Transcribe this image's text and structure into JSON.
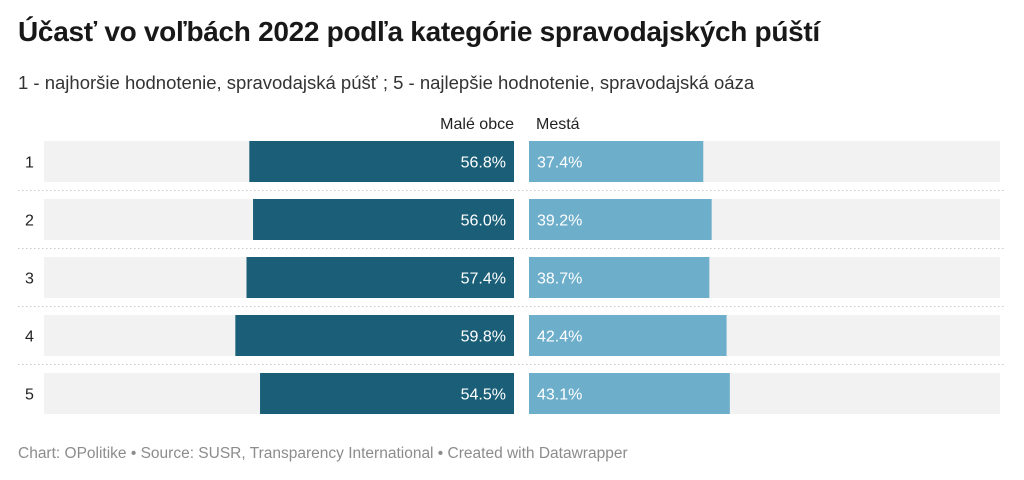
{
  "header": {
    "title": "Účasť vo voľbách 2022 podľa kategórie spravodajských púští",
    "subtitle": "1 - najhoršie hodnotenie, spravodajská púšť ; 5 - najlepšie hodnotenie, spravodajská oáza"
  },
  "footer": {
    "credit": "Chart: OPolitike • Source: SUSR, Transparency International • Created with Datawrapper"
  },
  "colors": {
    "left_bar": "#1a5f77",
    "right_bar": "#6daecb",
    "track": "#f2f2f2",
    "separator": "#c8c8c8",
    "label_text": "#ffffff"
  },
  "chart_data": {
    "type": "bar",
    "orientation": "horizontal",
    "layout": "split-bars",
    "categories": [
      "1",
      "2",
      "3",
      "4",
      "5"
    ],
    "series": [
      {
        "name": "Malé obce",
        "values": [
          56.8,
          56.0,
          57.4,
          59.8,
          54.5
        ],
        "labels": [
          "56.8%",
          "56.0%",
          "57.4%",
          "59.8%",
          "54.5%"
        ]
      },
      {
        "name": "Mestá",
        "values": [
          37.4,
          39.2,
          38.7,
          42.4,
          43.1
        ],
        "labels": [
          "37.4%",
          "39.2%",
          "38.7%",
          "42.4%",
          "43.1%"
        ]
      }
    ],
    "unit": "%",
    "xlim": [
      0,
      100
    ]
  }
}
